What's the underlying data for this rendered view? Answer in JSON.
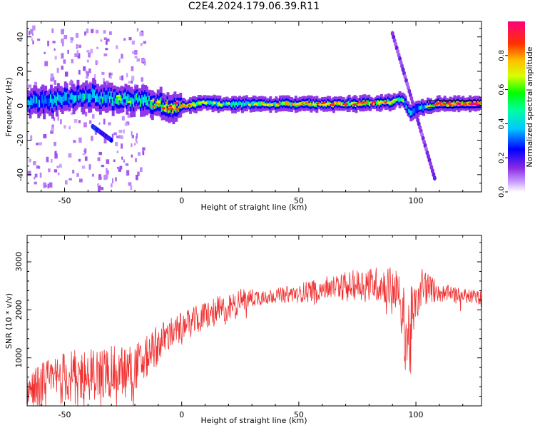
{
  "figure": {
    "title": "C2E4.2024.179.06.39.R11"
  },
  "chart_data": [
    {
      "type": "heatmap",
      "title": "",
      "xlabel": "Height of straight line (km)",
      "ylabel": "Frequency (Hz)",
      "xlim": [
        -66,
        128
      ],
      "ylim": [
        -50,
        49
      ],
      "xticks": [
        -50,
        0,
        50,
        100
      ],
      "yticks": [
        -40,
        -20,
        0,
        20,
        40
      ],
      "colorbar": {
        "label": "Normalized spectral amplitude",
        "range": [
          0.0,
          1.0
        ],
        "ticks": [
          "0.0",
          "0.2",
          "0.4",
          "0.6",
          "0.8"
        ],
        "colormap": [
          "#ffffff",
          "#9b30ff",
          "#0000ff",
          "#00ffff",
          "#00ff00",
          "#ffff00",
          "#ff8000",
          "#ff0000",
          "#ff0080"
        ]
      },
      "trace_center_hz": {
        "x": [
          -66,
          -55,
          -45,
          -40,
          -35,
          -25,
          -15,
          -8,
          0,
          5,
          10,
          15,
          20,
          30,
          50,
          70,
          90,
          94,
          96,
          98,
          100,
          110,
          128
        ],
        "y": [
          2,
          3,
          5,
          6,
          5,
          4,
          3,
          0,
          0,
          0.5,
          2,
          1,
          1,
          1,
          1,
          1,
          2,
          4,
          0,
          -5,
          -2,
          1,
          1
        ]
      },
      "trace_amplitude": {
        "x": [
          -66,
          -50,
          -40,
          -30,
          -20,
          -10,
          0,
          10,
          20,
          40,
          60,
          80,
          90,
          95,
          100,
          110,
          128
        ],
        "y": [
          0.45,
          0.5,
          0.55,
          0.6,
          0.55,
          0.75,
          0.9,
          0.6,
          0.6,
          0.7,
          0.8,
          0.8,
          0.75,
          0.5,
          0.4,
          0.85,
          0.95
        ]
      },
      "streaks": [
        {
          "x": [
            -38,
            -30
          ],
          "y": [
            -12,
            -20
          ],
          "amp": 0.25
        },
        {
          "x": [
            90,
            108
          ],
          "y": [
            42,
            -42
          ],
          "amp": 0.15
        }
      ]
    },
    {
      "type": "line",
      "title": "",
      "xlabel": "Height of straight line (km)",
      "ylabel": "SNR (10 * v/v)",
      "xlim": [
        -66,
        128
      ],
      "ylim": [
        0,
        3550
      ],
      "xticks": [
        -50,
        0,
        50,
        100
      ],
      "yticks": [
        1000,
        2000,
        3000
      ],
      "color": "#f03030",
      "series": [
        {
          "x": [
            -66,
            -60,
            -50,
            -40,
            -30,
            -20,
            -15,
            -10,
            -5,
            0,
            5,
            10,
            15,
            20,
            25,
            30,
            40,
            50,
            60,
            70,
            80,
            90,
            93,
            96,
            98,
            100,
            103,
            106,
            110,
            120,
            128
          ],
          "y": [
            300,
            450,
            600,
            650,
            700,
            800,
            1000,
            1300,
            1500,
            1650,
            1750,
            1900,
            1950,
            2000,
            2200,
            2250,
            2300,
            2350,
            2450,
            2500,
            2550,
            2500,
            2300,
            1400,
            1500,
            2300,
            2500,
            2450,
            2350,
            2300,
            2250
          ],
          "noise": [
            350,
            450,
            550,
            550,
            550,
            500,
            450,
            400,
            350,
            300,
            300,
            300,
            350,
            300,
            250,
            200,
            150,
            200,
            250,
            300,
            350,
            400,
            500,
            900,
            1000,
            600,
            450,
            300,
            200,
            150,
            150
          ]
        }
      ]
    }
  ]
}
